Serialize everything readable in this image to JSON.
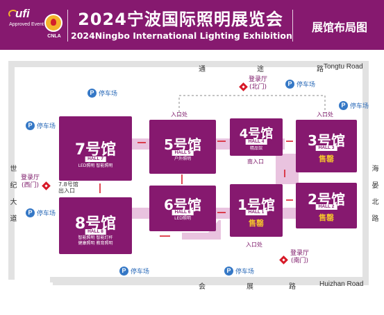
{
  "header": {
    "ufi_logo": "ufi",
    "ufi_caption": "Approved Event",
    "cnia_logo": "CNLA",
    "title_cn": "2024宁波国际照明展览会",
    "title_en": "2024Ningbo  International Lighting Exhibition",
    "subtitle": "展馆布局图",
    "colors": {
      "brand": "#86196f",
      "accent_gold": "#f2c12e",
      "arrow_red": "#d71a28"
    }
  },
  "roads": {
    "north": {
      "chars": [
        "通",
        "途",
        "路"
      ],
      "en": "Tongtu Road"
    },
    "south": {
      "chars": [
        "会",
        "展",
        "路"
      ],
      "en": "Huizhan Road"
    },
    "west": {
      "chars": "世纪大道"
    },
    "east": {
      "chars": "海晏北路"
    }
  },
  "parking": {
    "icon": "parking-icon",
    "letter": "P",
    "label": "停车场"
  },
  "registration": {
    "north": "登录厅\n(北门)",
    "west": "登录厅\n(西门)",
    "south": "登录厅\n(南门)"
  },
  "entrances": {
    "e1": "入口处",
    "e2": "入口处",
    "south_entrance": "南入口",
    "hall1_entrance": "入口处",
    "hall78_entrance": "7.8号馆\n出入口"
  },
  "halls": {
    "h7": {
      "title": "7号馆",
      "tag": "HALL 7",
      "sub": "LED照明  智能照明"
    },
    "h8": {
      "title": "8号馆",
      "tag": "HALL 8",
      "sub1": "智能照明  智能灯杆",
      "sub2": "健康照明  教育照明"
    },
    "h5": {
      "title": "5号馆",
      "tag": "HALL 5",
      "sub": "户外照明"
    },
    "h6": {
      "title": "6号馆",
      "tag": "HALL 6",
      "sub": "LED照明"
    },
    "h4": {
      "title": "4号馆",
      "tag": "HALL 4",
      "sub": "精品馆"
    },
    "h1": {
      "title": "1号馆",
      "tag": "HALL 1",
      "status": "售罄"
    },
    "h3": {
      "title": "3号馆",
      "tag": "HALL 3",
      "status": "售罄"
    },
    "h2": {
      "title": "2号馆",
      "tag": "HALL 2",
      "status": "售罄"
    }
  }
}
